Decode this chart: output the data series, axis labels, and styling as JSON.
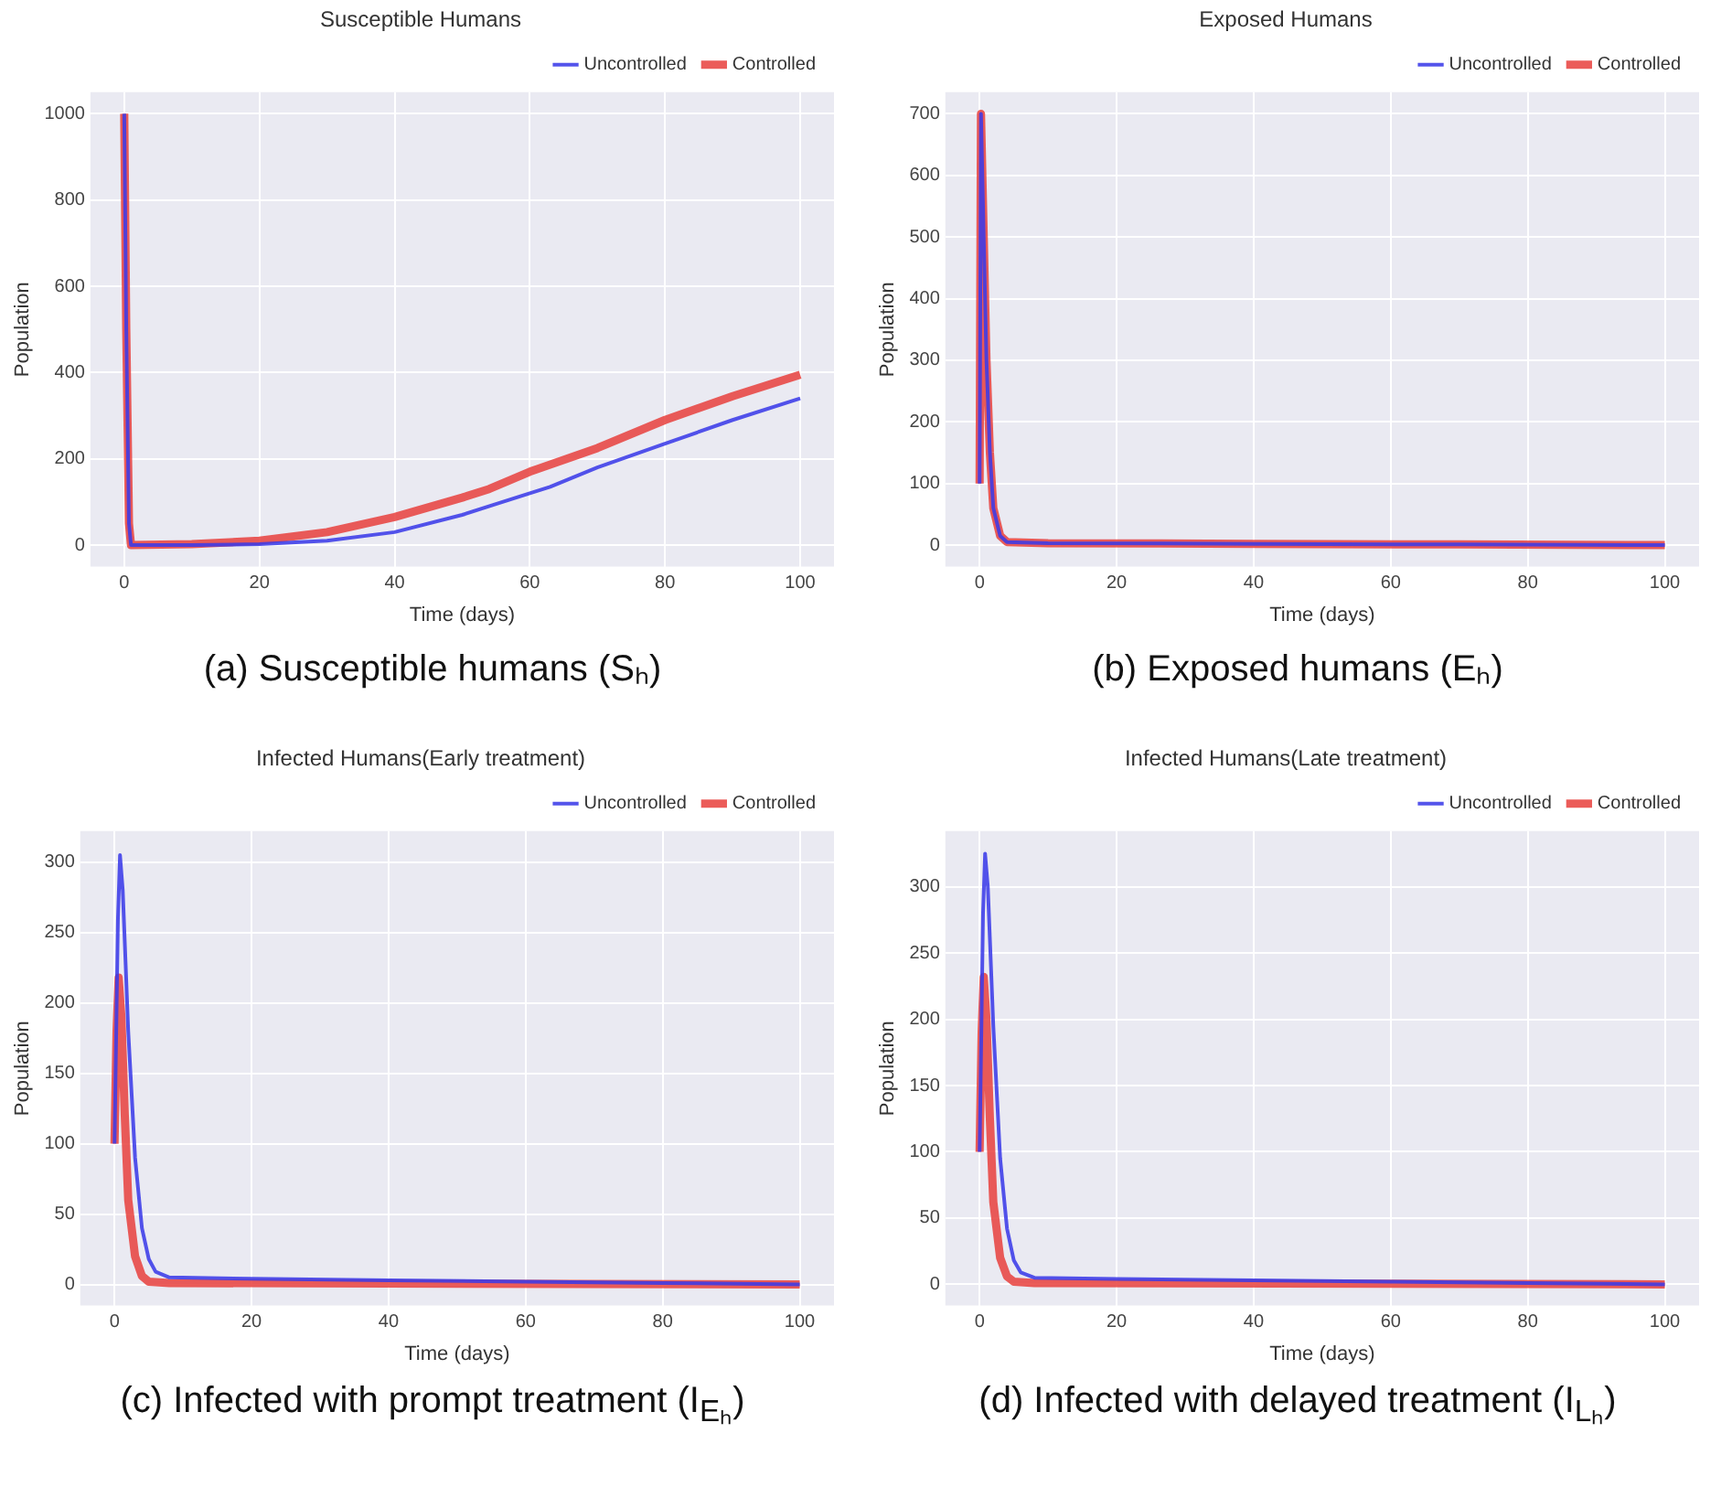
{
  "chart_data": [
    {
      "type": "line",
      "title": "Susceptible Humans",
      "xlabel": "Time (days)",
      "ylabel": "Population",
      "annotations": [
        "(a) Susceptible humans (Sₕ)"
      ],
      "xlim": [
        -5,
        105
      ],
      "xticks": [
        0,
        20,
        40,
        60,
        80,
        100
      ],
      "ylim": [
        -50,
        1050
      ],
      "yticks": [
        0,
        200,
        400,
        600,
        800,
        1000
      ],
      "grid": true,
      "legend": "top right",
      "series": [
        {
          "name": "Uncontrolled",
          "color": "#3a3ae8",
          "x": [
            0,
            0.3,
            0.7,
            1,
            10,
            20,
            30,
            40,
            50,
            55,
            60,
            63,
            70,
            80,
            90,
            100
          ],
          "values": [
            1000,
            500,
            50,
            0,
            0,
            2,
            10,
            30,
            70,
            95,
            120,
            135,
            180,
            235,
            290,
            340
          ]
        },
        {
          "name": "Controlled",
          "color": "#e8433f",
          "x": [
            0,
            0.3,
            0.7,
            1,
            10,
            20,
            30,
            40,
            50,
            54,
            60,
            70,
            80,
            90,
            100
          ],
          "values": [
            1000,
            500,
            50,
            0,
            2,
            10,
            30,
            65,
            110,
            130,
            170,
            225,
            290,
            345,
            395
          ]
        }
      ]
    },
    {
      "type": "line",
      "title": "Exposed Humans",
      "xlabel": "Time (days)",
      "ylabel": "Population",
      "annotations": [
        "(b) Exposed humans (Eₕ)"
      ],
      "xlim": [
        -5,
        105
      ],
      "xticks": [
        0,
        20,
        40,
        60,
        80,
        100
      ],
      "ylim": [
        -35,
        735
      ],
      "yticks": [
        0,
        100,
        200,
        300,
        400,
        500,
        600,
        700
      ],
      "grid": true,
      "legend": "top right",
      "series": [
        {
          "name": "Uncontrolled",
          "color": "#3a3ae8",
          "x": [
            0,
            0.2,
            0.6,
            1,
            1.5,
            2,
            3,
            4,
            10,
            40,
            70,
            100
          ],
          "values": [
            100,
            700,
            500,
            300,
            150,
            60,
            15,
            5,
            3,
            2,
            1,
            0
          ]
        },
        {
          "name": "Controlled",
          "color": "#e8433f",
          "x": [
            0,
            0.2,
            0.6,
            1,
            1.5,
            2,
            3,
            4,
            10,
            40,
            70,
            100
          ],
          "values": [
            100,
            700,
            500,
            300,
            150,
            60,
            15,
            5,
            3,
            2,
            1,
            0
          ]
        }
      ]
    },
    {
      "type": "line",
      "title": "Infected Humans(Early treatment)",
      "xlabel": "Time (days)",
      "ylabel": "Population",
      "annotations": [
        "(c) Infected with prompt treatment (I$_{Eₕ}$)"
      ],
      "xlim": [
        -5,
        105
      ],
      "xticks": [
        0,
        20,
        40,
        60,
        80,
        100
      ],
      "ylim": [
        -15,
        322
      ],
      "yticks": [
        0,
        50,
        100,
        150,
        200,
        250,
        300
      ],
      "grid": true,
      "legend": "top right",
      "series": [
        {
          "name": "Uncontrolled",
          "color": "#3a3ae8",
          "x": [
            0,
            0.5,
            0.8,
            1.2,
            2,
            3,
            4,
            5,
            6,
            8,
            20,
            40,
            60,
            80,
            100
          ],
          "values": [
            100,
            260,
            305,
            280,
            180,
            90,
            40,
            18,
            9,
            5,
            4,
            3,
            2,
            1,
            0
          ]
        },
        {
          "name": "Controlled",
          "color": "#e8433f",
          "x": [
            0,
            0.3,
            0.6,
            1,
            1.5,
            2,
            3,
            4,
            5,
            8,
            100
          ],
          "values": [
            100,
            180,
            218,
            190,
            120,
            60,
            20,
            6,
            2,
            1,
            0
          ]
        }
      ]
    },
    {
      "type": "line",
      "title": "Infected Humans(Late treatment)",
      "xlabel": "Time (days)",
      "ylabel": "Population",
      "annotations": [
        "(d) Infected with delayed treatment (I$_{Lₕ}$)"
      ],
      "xlim": [
        -5,
        105
      ],
      "xticks": [
        0,
        20,
        40,
        60,
        80,
        100
      ],
      "ylim": [
        -16,
        342
      ],
      "yticks": [
        0,
        50,
        100,
        150,
        200,
        250,
        300
      ],
      "grid": true,
      "legend": "top right",
      "series": [
        {
          "name": "Uncontrolled",
          "color": "#3a3ae8",
          "x": [
            0,
            0.5,
            0.8,
            1.2,
            2,
            3,
            4,
            5,
            6,
            8,
            20,
            40,
            60,
            80,
            100
          ],
          "values": [
            100,
            280,
            325,
            300,
            195,
            95,
            42,
            18,
            9,
            5,
            4,
            3,
            2,
            1,
            0
          ]
        },
        {
          "name": "Controlled",
          "color": "#e8433f",
          "x": [
            0,
            0.3,
            0.6,
            1,
            1.5,
            2,
            3,
            4,
            5,
            8,
            100
          ],
          "values": [
            100,
            190,
            232,
            200,
            125,
            62,
            20,
            6,
            2,
            1,
            0
          ]
        }
      ]
    }
  ]
}
